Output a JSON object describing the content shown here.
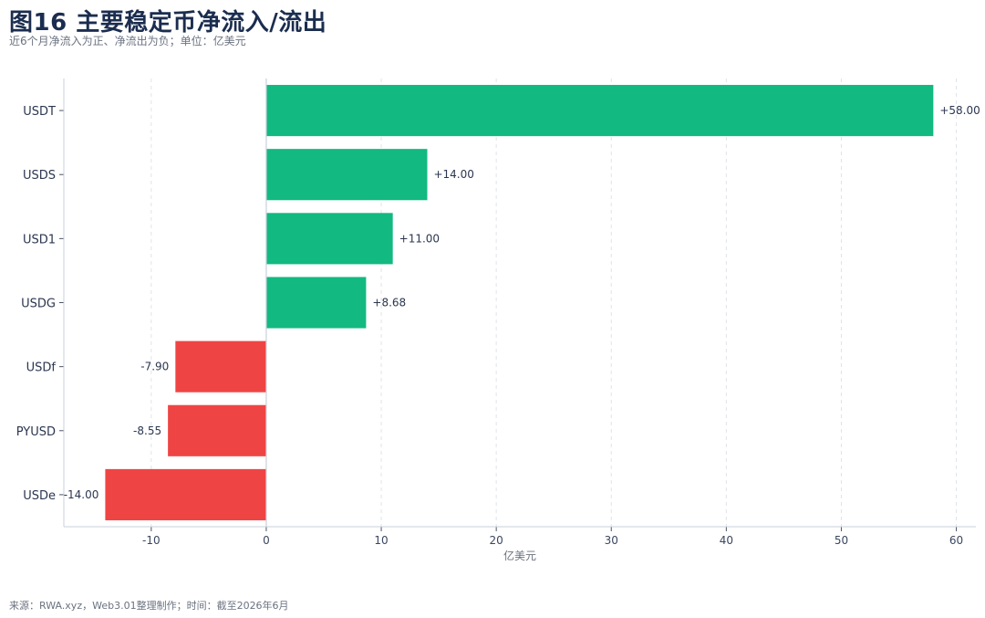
{
  "header": {
    "title": "图16 主要稳定币净流入/流出",
    "subtitle": "近6个月净流入为正、净流出为负；单位：亿美元"
  },
  "footer": {
    "source": "来源：RWA.xyz，Web3.01整理制作；时间：截至2026年6月"
  },
  "colors": {
    "positive": "#12b981",
    "negative": "#ef4444",
    "grid": "#dfe3ea",
    "axis": "#c9d0db",
    "zero_line": "#c9d0db"
  },
  "chart_data": {
    "type": "bar",
    "orientation": "horizontal",
    "categories": [
      "USDT",
      "USDS",
      "USD1",
      "USDG",
      "USDf",
      "PYUSD",
      "USDe"
    ],
    "values": [
      58.0,
      14.0,
      11.0,
      8.68,
      -7.9,
      -8.55,
      -14.0
    ],
    "value_labels": [
      "+58.00",
      "+14.00",
      "+11.00",
      "+8.68",
      "-7.90",
      "-8.55",
      "-14.00"
    ],
    "xlabel": "亿美元",
    "ylabel": "",
    "xlim": [
      -17.6,
      61.7
    ],
    "xticks": [
      -10,
      0,
      10,
      20,
      30,
      40,
      50,
      60
    ],
    "xtick_labels": [
      "-10",
      "0",
      "10",
      "20",
      "30",
      "40",
      "50",
      "60"
    ],
    "grid": "vertical dashed",
    "legend": "none"
  }
}
